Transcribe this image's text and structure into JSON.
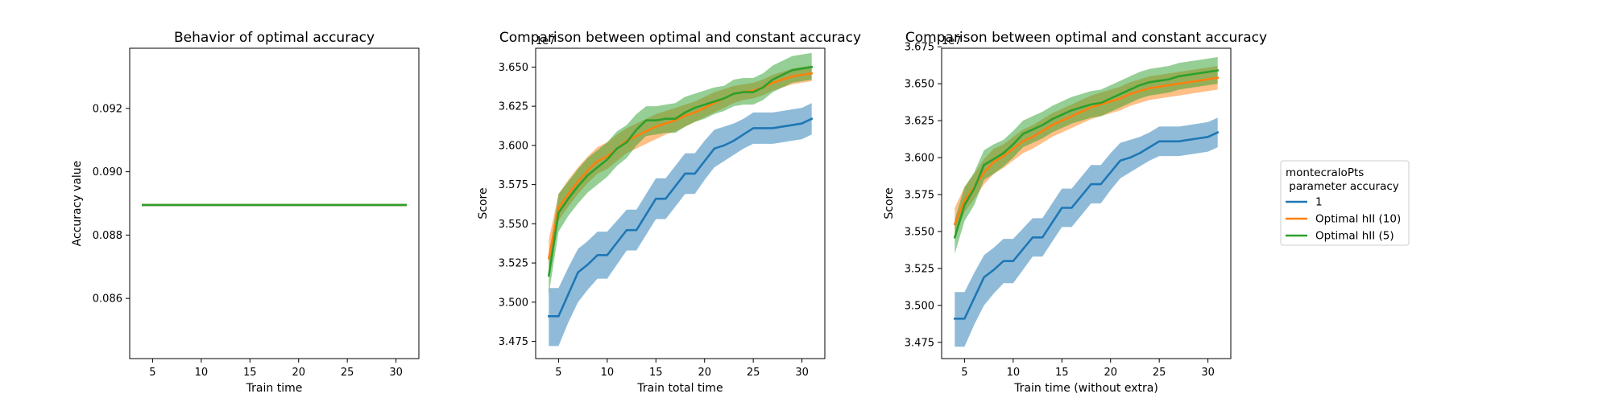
{
  "chart_data": [
    {
      "type": "line",
      "title": "Behavior of optimal accuracy",
      "xlabel": "Train time",
      "ylabel": "Accuracy value",
      "xlim": [
        2.65,
        32.35
      ],
      "ylim": [
        0.0841,
        0.0939
      ],
      "xticks": [
        5,
        10,
        15,
        20,
        25,
        30
      ],
      "yticks": [
        0.086,
        0.088,
        0.09,
        0.092
      ],
      "ytick_labels": [
        "0.086",
        "0.088",
        "0.090",
        "0.092"
      ],
      "grid": false,
      "series": [
        {
          "color": "#1f77b4",
          "x": [
            4,
            31
          ],
          "y": [
            0.08895,
            0.08895
          ]
        },
        {
          "color": "#ff7f0e",
          "x": [
            4,
            31
          ],
          "y": [
            0.08895,
            0.08895
          ]
        },
        {
          "color": "#2ca02c",
          "x": [
            4,
            31
          ],
          "y": [
            0.08895,
            0.08895
          ]
        }
      ]
    },
    {
      "type": "line",
      "title": "Comparison between optimal and constant accuracy",
      "xlabel": "Train total time",
      "ylabel": "Score",
      "offset_text": "1e7",
      "xlim": [
        2.65,
        32.35
      ],
      "ylim": [
        3.464,
        3.662
      ],
      "xticks": [
        5,
        10,
        15,
        20,
        25,
        30
      ],
      "yticks": [
        3.475,
        3.5,
        3.525,
        3.55,
        3.575,
        3.6,
        3.625,
        3.65
      ],
      "ytick_labels": [
        "3.475",
        "3.500",
        "3.525",
        "3.550",
        "3.575",
        "3.600",
        "3.625",
        "3.650"
      ],
      "grid": false,
      "series": [
        {
          "name": "1",
          "color": "#1f77b4",
          "x": [
            4,
            5,
            6,
            7,
            8,
            9,
            10,
            11,
            12,
            13,
            14,
            15,
            16,
            17,
            18,
            19,
            20,
            21,
            22,
            23,
            24,
            25,
            26,
            27,
            28,
            29,
            30,
            31
          ],
          "y": [
            3.491,
            3.491,
            3.505,
            3.519,
            3.524,
            3.53,
            3.53,
            3.538,
            3.546,
            3.546,
            3.556,
            3.566,
            3.566,
            3.574,
            3.582,
            3.582,
            3.59,
            3.598,
            3.6,
            3.603,
            3.607,
            3.611,
            3.611,
            3.611,
            3.612,
            3.613,
            3.614,
            3.617
          ],
          "lower": [
            3.472,
            3.472,
            3.487,
            3.5,
            3.508,
            3.515,
            3.515,
            3.524,
            3.533,
            3.533,
            3.543,
            3.553,
            3.553,
            3.561,
            3.569,
            3.569,
            3.578,
            3.586,
            3.59,
            3.594,
            3.598,
            3.601,
            3.601,
            3.601,
            3.602,
            3.603,
            3.604,
            3.607
          ],
          "upper": [
            3.509,
            3.509,
            3.522,
            3.534,
            3.539,
            3.545,
            3.545,
            3.552,
            3.559,
            3.559,
            3.569,
            3.579,
            3.579,
            3.587,
            3.595,
            3.595,
            3.603,
            3.61,
            3.612,
            3.614,
            3.617,
            3.621,
            3.621,
            3.621,
            3.622,
            3.623,
            3.624,
            3.627
          ]
        },
        {
          "name": "Optimal hII (10)",
          "color": "#ff7f0e",
          "x": [
            4,
            5,
            6,
            7,
            8,
            9,
            10,
            11,
            12,
            13,
            14,
            15,
            16,
            17,
            18,
            19,
            20,
            21,
            22,
            23,
            24,
            25,
            26,
            27,
            28,
            29,
            30,
            31
          ],
          "y": [
            3.528,
            3.56,
            3.569,
            3.577,
            3.584,
            3.59,
            3.593,
            3.598,
            3.603,
            3.606,
            3.609,
            3.612,
            3.614,
            3.616,
            3.619,
            3.621,
            3.624,
            3.627,
            3.63,
            3.633,
            3.634,
            3.635,
            3.637,
            3.64,
            3.642,
            3.644,
            3.645,
            3.646
          ],
          "lower": [
            3.521,
            3.552,
            3.561,
            3.569,
            3.576,
            3.582,
            3.585,
            3.59,
            3.595,
            3.598,
            3.601,
            3.604,
            3.607,
            3.609,
            3.612,
            3.615,
            3.618,
            3.621,
            3.624,
            3.627,
            3.629,
            3.63,
            3.632,
            3.635,
            3.637,
            3.639,
            3.64,
            3.641
          ],
          "upper": [
            3.54,
            3.569,
            3.578,
            3.586,
            3.593,
            3.599,
            3.602,
            3.607,
            3.611,
            3.614,
            3.617,
            3.62,
            3.622,
            3.624,
            3.626,
            3.628,
            3.631,
            3.634,
            3.636,
            3.638,
            3.639,
            3.64,
            3.642,
            3.645,
            3.647,
            3.649,
            3.65,
            3.651
          ]
        },
        {
          "name": "Optimal hII (5)",
          "color": "#2ca02c",
          "x": [
            4,
            5,
            6,
            7,
            8,
            9,
            10,
            11,
            12,
            13,
            14,
            15,
            16,
            17,
            18,
            19,
            20,
            21,
            22,
            23,
            24,
            25,
            26,
            27,
            28,
            29,
            30,
            31
          ],
          "y": [
            3.517,
            3.557,
            3.566,
            3.574,
            3.581,
            3.586,
            3.591,
            3.598,
            3.602,
            3.61,
            3.616,
            3.616,
            3.617,
            3.617,
            3.621,
            3.624,
            3.626,
            3.628,
            3.63,
            3.633,
            3.634,
            3.634,
            3.637,
            3.642,
            3.645,
            3.648,
            3.649,
            3.65
          ],
          "lower": [
            3.505,
            3.545,
            3.555,
            3.563,
            3.57,
            3.575,
            3.58,
            3.587,
            3.592,
            3.6,
            3.606,
            3.607,
            3.608,
            3.608,
            3.612,
            3.615,
            3.617,
            3.62,
            3.622,
            3.625,
            3.626,
            3.626,
            3.629,
            3.634,
            3.637,
            3.64,
            3.641,
            3.642
          ],
          "upper": [
            3.529,
            3.569,
            3.577,
            3.585,
            3.592,
            3.597,
            3.602,
            3.609,
            3.613,
            3.62,
            3.625,
            3.625,
            3.626,
            3.627,
            3.631,
            3.633,
            3.635,
            3.637,
            3.638,
            3.642,
            3.643,
            3.643,
            3.646,
            3.651,
            3.654,
            3.657,
            3.658,
            3.659
          ]
        }
      ]
    },
    {
      "type": "line",
      "title": "Comparison between optimal and constant accuracy",
      "xlabel": "Train time (without extra)",
      "ylabel": "Score",
      "offset_text": "1e7",
      "xlim": [
        2.65,
        32.35
      ],
      "ylim": [
        3.464,
        3.674
      ],
      "xticks": [
        5,
        10,
        15,
        20,
        25,
        30
      ],
      "yticks": [
        3.475,
        3.5,
        3.525,
        3.55,
        3.575,
        3.6,
        3.625,
        3.65,
        3.675
      ],
      "ytick_labels": [
        "3.475",
        "3.500",
        "3.525",
        "3.550",
        "3.575",
        "3.600",
        "3.625",
        "3.650",
        "3.675"
      ],
      "grid": false,
      "series": [
        {
          "name": "1",
          "color": "#1f77b4",
          "x": [
            4,
            5,
            6,
            7,
            8,
            9,
            10,
            11,
            12,
            13,
            14,
            15,
            16,
            17,
            18,
            19,
            20,
            21,
            22,
            23,
            24,
            25,
            26,
            27,
            28,
            29,
            30,
            31
          ],
          "y": [
            3.491,
            3.491,
            3.505,
            3.519,
            3.524,
            3.53,
            3.53,
            3.538,
            3.546,
            3.546,
            3.556,
            3.566,
            3.566,
            3.574,
            3.582,
            3.582,
            3.59,
            3.598,
            3.6,
            3.603,
            3.607,
            3.611,
            3.611,
            3.611,
            3.612,
            3.613,
            3.614,
            3.617
          ],
          "lower": [
            3.472,
            3.472,
            3.487,
            3.5,
            3.508,
            3.515,
            3.515,
            3.524,
            3.533,
            3.533,
            3.543,
            3.553,
            3.553,
            3.561,
            3.569,
            3.569,
            3.578,
            3.586,
            3.59,
            3.594,
            3.598,
            3.601,
            3.601,
            3.601,
            3.602,
            3.603,
            3.604,
            3.607
          ],
          "upper": [
            3.509,
            3.509,
            3.522,
            3.534,
            3.539,
            3.545,
            3.545,
            3.552,
            3.559,
            3.559,
            3.569,
            3.579,
            3.579,
            3.587,
            3.595,
            3.595,
            3.603,
            3.61,
            3.612,
            3.614,
            3.617,
            3.621,
            3.621,
            3.621,
            3.622,
            3.623,
            3.624,
            3.627
          ]
        },
        {
          "name": "Optimal hII (10)",
          "color": "#ff7f0e",
          "x": [
            4,
            5,
            6,
            7,
            8,
            9,
            10,
            11,
            12,
            13,
            14,
            15,
            16,
            17,
            18,
            19,
            20,
            21,
            22,
            23,
            24,
            25,
            26,
            27,
            28,
            29,
            30,
            31
          ],
          "y": [
            3.555,
            3.571,
            3.58,
            3.59,
            3.597,
            3.601,
            3.606,
            3.611,
            3.614,
            3.618,
            3.622,
            3.625,
            3.628,
            3.631,
            3.634,
            3.636,
            3.638,
            3.64,
            3.643,
            3.645,
            3.647,
            3.648,
            3.649,
            3.65,
            3.651,
            3.652,
            3.653,
            3.654
          ],
          "lower": [
            3.546,
            3.563,
            3.572,
            3.582,
            3.589,
            3.593,
            3.598,
            3.603,
            3.606,
            3.61,
            3.614,
            3.617,
            3.62,
            3.623,
            3.626,
            3.628,
            3.63,
            3.632,
            3.635,
            3.637,
            3.639,
            3.64,
            3.641,
            3.642,
            3.643,
            3.644,
            3.645,
            3.646
          ],
          "upper": [
            3.566,
            3.58,
            3.589,
            3.599,
            3.606,
            3.609,
            3.614,
            3.619,
            3.622,
            3.626,
            3.63,
            3.633,
            3.636,
            3.639,
            3.642,
            3.644,
            3.646,
            3.648,
            3.651,
            3.653,
            3.655,
            3.656,
            3.657,
            3.658,
            3.659,
            3.66,
            3.661,
            3.662
          ]
        },
        {
          "name": "Optimal hII (5)",
          "color": "#2ca02c",
          "x": [
            4,
            5,
            6,
            7,
            8,
            9,
            10,
            11,
            12,
            13,
            14,
            15,
            16,
            17,
            18,
            19,
            20,
            21,
            22,
            23,
            24,
            25,
            26,
            27,
            28,
            29,
            30,
            31
          ],
          "y": [
            3.546,
            3.568,
            3.579,
            3.595,
            3.599,
            3.603,
            3.609,
            3.616,
            3.619,
            3.622,
            3.626,
            3.629,
            3.632,
            3.634,
            3.636,
            3.637,
            3.64,
            3.643,
            3.646,
            3.649,
            3.651,
            3.652,
            3.653,
            3.655,
            3.656,
            3.657,
            3.658,
            3.659
          ],
          "lower": [
            3.535,
            3.557,
            3.568,
            3.585,
            3.589,
            3.594,
            3.6,
            3.607,
            3.61,
            3.613,
            3.617,
            3.62,
            3.623,
            3.625,
            3.627,
            3.628,
            3.631,
            3.634,
            3.637,
            3.64,
            3.642,
            3.643,
            3.644,
            3.646,
            3.647,
            3.648,
            3.649,
            3.65
          ],
          "upper": [
            3.558,
            3.58,
            3.59,
            3.605,
            3.609,
            3.612,
            3.618,
            3.625,
            3.628,
            3.631,
            3.635,
            3.638,
            3.641,
            3.643,
            3.645,
            3.646,
            3.649,
            3.652,
            3.655,
            3.658,
            3.66,
            3.661,
            3.662,
            3.664,
            3.665,
            3.666,
            3.667,
            3.668
          ]
        }
      ]
    }
  ],
  "legend": {
    "title": "montecraloPts\n parameter accuracy",
    "placement": "right",
    "entries": [
      {
        "label": "1",
        "color": "#1f77b4"
      },
      {
        "label": "Optimal hII (10)",
        "color": "#ff7f0e"
      },
      {
        "label": "Optimal hII (5)",
        "color": "#2ca02c"
      }
    ]
  }
}
